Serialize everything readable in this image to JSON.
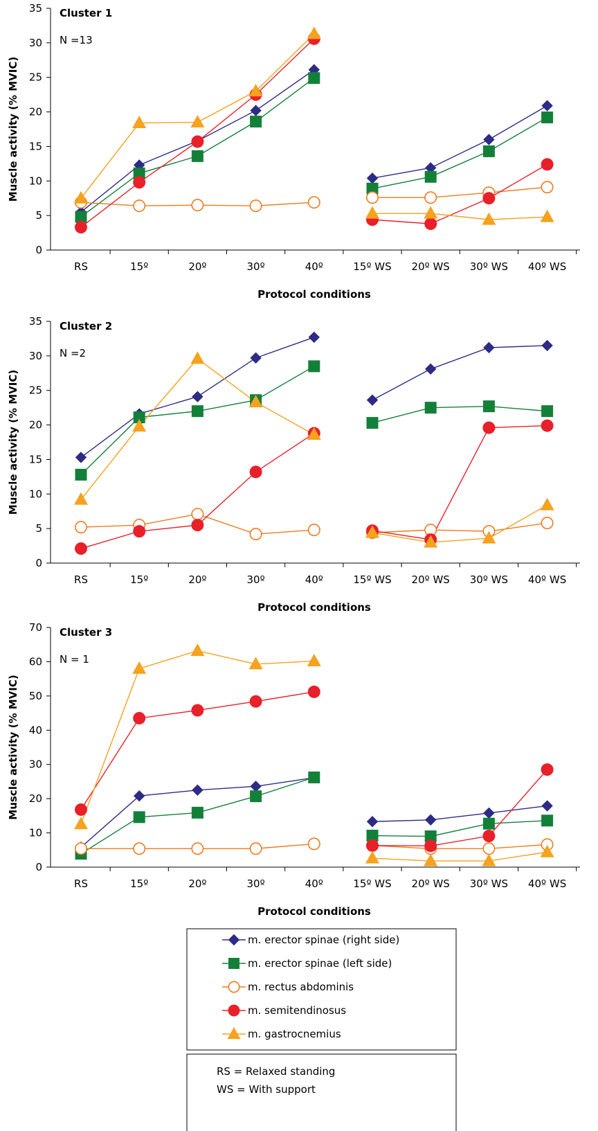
{
  "chart_data": [
    {
      "type": "line",
      "title": "Cluster 1",
      "subtitle": "N =13",
      "xlabel": "Protocol conditions",
      "ylabel": "Muscle activity (% MVIC)",
      "ylim": [
        0,
        35
      ],
      "yticks": [
        "0",
        "5",
        "10",
        "15",
        "20",
        "25",
        "30",
        "35"
      ],
      "categories": [
        "RS",
        "15º",
        "20º",
        "30º",
        "40º",
        "15º WS",
        "20º WS",
        "30º WS",
        "40º WS"
      ],
      "series": [
        {
          "name": "m. erector spinae (right side)",
          "values": [
            5.5,
            12.3,
            15.8,
            20.2,
            26.1,
            10.4,
            11.9,
            16.0,
            20.9
          ]
        },
        {
          "name": "m. erector spinae (left side)",
          "values": [
            4.8,
            11.1,
            13.6,
            18.6,
            24.9,
            8.9,
            10.6,
            14.3,
            19.2
          ]
        },
        {
          "name": "m. rectus abdominis",
          "values": [
            6.9,
            6.4,
            6.5,
            6.4,
            6.9,
            7.6,
            7.6,
            8.3,
            9.1
          ]
        },
        {
          "name": "m. semitendinosus",
          "values": [
            3.3,
            9.8,
            15.7,
            22.5,
            30.6,
            4.4,
            3.8,
            7.5,
            12.4
          ]
        },
        {
          "name": "m. gastrocnemius",
          "values": [
            7.5,
            18.4,
            18.5,
            23.0,
            31.3,
            5.3,
            5.3,
            4.4,
            4.8
          ]
        }
      ]
    },
    {
      "type": "line",
      "title": "Cluster 2",
      "subtitle": "N =2",
      "xlabel": "Protocol conditions",
      "ylabel": "Muscle activity (% MVIC)",
      "ylim": [
        0,
        35
      ],
      "yticks": [
        "0",
        "5",
        "10",
        "15",
        "20",
        "25",
        "30",
        "35"
      ],
      "categories": [
        "RS",
        "15º",
        "20º",
        "30º",
        "40º",
        "15º WS",
        "20º WS",
        "30º WS",
        "40º WS"
      ],
      "series": [
        {
          "name": "m. erector spinae (right side)",
          "values": [
            15.3,
            21.6,
            24.1,
            29.7,
            32.7,
            23.6,
            28.1,
            31.2,
            31.5
          ]
        },
        {
          "name": "m. erector spinae (left side)",
          "values": [
            12.8,
            21.1,
            22.0,
            23.6,
            28.5,
            20.3,
            22.5,
            22.7,
            22.0
          ]
        },
        {
          "name": "m. rectus abdominis",
          "values": [
            5.2,
            5.5,
            7.1,
            4.2,
            4.8,
            4.4,
            4.8,
            4.6,
            5.8
          ]
        },
        {
          "name": "m. semitendinosus",
          "values": [
            2.1,
            4.6,
            5.5,
            13.2,
            18.8,
            4.7,
            3.4,
            19.6,
            19.9
          ]
        },
        {
          "name": "m. gastrocnemius",
          "values": [
            9.2,
            19.8,
            29.6,
            23.3,
            18.6,
            4.4,
            3.0,
            3.6,
            8.4
          ]
        }
      ]
    },
    {
      "type": "line",
      "title": "Cluster 3",
      "subtitle": "N = 1",
      "xlabel": "Protocol conditions",
      "ylabel": "Muscle activity (% MVIC)",
      "ylim": [
        0,
        70
      ],
      "yticks": [
        "0",
        "10",
        "20",
        "30",
        "40",
        "50",
        "60",
        "70"
      ],
      "categories": [
        "RS",
        "15º",
        "20º",
        "30º",
        "40º",
        "15º WS",
        "20º WS",
        "30º WS",
        "40º WS"
      ],
      "series": [
        {
          "name": "m. erector spinae (right side)",
          "values": [
            5.8,
            20.8,
            22.5,
            23.6,
            26.1,
            13.3,
            13.8,
            15.8,
            17.9
          ]
        },
        {
          "name": "m. erector spinae (left side)",
          "values": [
            3.9,
            14.6,
            15.9,
            20.7,
            26.2,
            9.2,
            9.0,
            12.7,
            13.6
          ]
        },
        {
          "name": "m. rectus abdominis",
          "values": [
            5.4,
            5.4,
            5.4,
            5.4,
            6.8,
            6.3,
            5.4,
            5.4,
            6.6
          ]
        },
        {
          "name": "m. semitendinosus",
          "values": [
            16.8,
            43.5,
            45.8,
            48.4,
            51.2,
            6.3,
            6.2,
            9.1,
            28.5
          ]
        },
        {
          "name": "m. gastrocnemius",
          "values": [
            12.6,
            58.0,
            63.2,
            59.3,
            60.2,
            2.6,
            1.8,
            1.8,
            4.4
          ]
        }
      ]
    }
  ],
  "legend": {
    "items": [
      {
        "label": "m. erector spinae (right side)",
        "color": "#2e2b86",
        "marker": "diamond",
        "filled": true
      },
      {
        "label": "m. erector spinae (left side)",
        "color": "#13803a",
        "marker": "square",
        "filled": true
      },
      {
        "label": "m. rectus abdominis",
        "color": "#f07a1e",
        "marker": "circle",
        "filled": false
      },
      {
        "label": "m. semitendinosus",
        "color": "#e8202a",
        "marker": "circle",
        "filled": true
      },
      {
        "label": "m. gastrocnemius",
        "color": "#f5a21e",
        "marker": "triangle",
        "filled": true
      }
    ]
  },
  "notes": {
    "rs": "RS =  Relaxed standing",
    "ws": "WS = With support"
  }
}
